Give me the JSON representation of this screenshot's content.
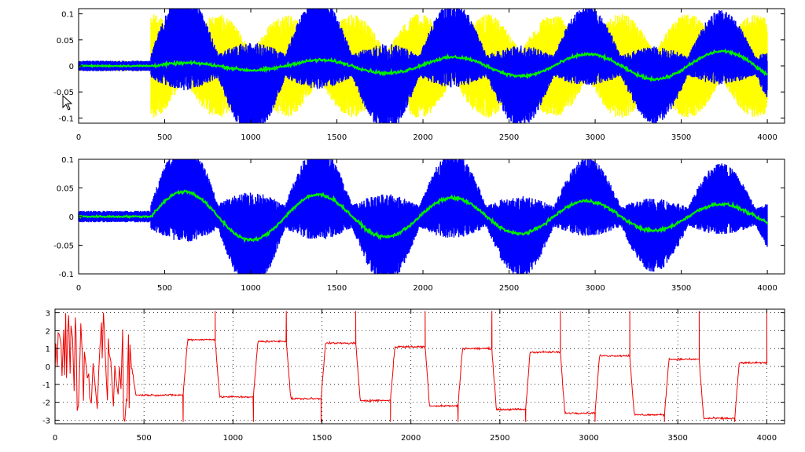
{
  "colors": {
    "background": "#ffffff",
    "axis": "#000000",
    "grid": "#000000",
    "yellow": "#ffff00",
    "blue": "#0000ff",
    "green": "#00ee00",
    "red": "#ee0000"
  },
  "chart_data": [
    {
      "type": "line",
      "title": "",
      "xlabel": "",
      "ylabel": "",
      "xlim": [
        0,
        4100
      ],
      "ylim": [
        -0.11,
        0.11
      ],
      "x_ticks": [
        "0",
        "500",
        "1000",
        "1500",
        "2000",
        "2500",
        "3000",
        "3500",
        "4000"
      ],
      "y_ticks": [
        "0.1",
        "0.05",
        "0",
        "-0.05",
        "-0.1"
      ],
      "x_tick_values": [
        0,
        500,
        1000,
        1500,
        2000,
        2500,
        3000,
        3500,
        4000
      ],
      "y_tick_values": [
        0.1,
        0.05,
        0,
        -0.05,
        -0.1
      ],
      "grid": false,
      "series": [
        {
          "color": "yellow",
          "style": "band",
          "x_start": 0,
          "x_end": 4000,
          "noise_until": 420,
          "envelope_period": 390,
          "envelope_phase": 0.5,
          "amplitude": [
            0.1,
            0.1
          ],
          "fill": "between"
        },
        {
          "color": "blue",
          "style": "band",
          "x_start": 0,
          "x_end": 4000,
          "noise_until": 420,
          "envelope_period": 390,
          "envelope_phase": 0.0,
          "amplitude": [
            0.095,
            0.07
          ],
          "fill": "between"
        },
        {
          "color": "green",
          "style": "line",
          "x_start": 0,
          "x_end": 4000,
          "noise_until": 420,
          "envelope_period": 390,
          "envelope_phase": 0.0,
          "amplitude": [
            0.004,
            0.03
          ]
        }
      ]
    },
    {
      "type": "line",
      "title": "",
      "xlabel": "",
      "ylabel": "",
      "xlim": [
        0,
        4100
      ],
      "ylim": [
        -0.1,
        0.1
      ],
      "x_ticks": [
        "0",
        "500",
        "1000",
        "1500",
        "2000",
        "2500",
        "3000",
        "3500",
        "4000"
      ],
      "y_ticks": [
        "0.1",
        "0.05",
        "0",
        "-0.05",
        "-0.1"
      ],
      "x_tick_values": [
        0,
        500,
        1000,
        1500,
        2000,
        2500,
        3000,
        3500,
        4000
      ],
      "y_tick_values": [
        0.1,
        0.05,
        0,
        -0.05,
        -0.1
      ],
      "grid": false,
      "series": [
        {
          "color": "blue",
          "style": "band",
          "x_start": 0,
          "x_end": 4000,
          "noise_until": 420,
          "envelope_period": 390,
          "envelope_phase": 0.0,
          "amplitude": [
            0.09,
            0.06
          ]
        },
        {
          "color": "green",
          "style": "line",
          "x_start": 0,
          "x_end": 4000,
          "noise_until": 420,
          "envelope_period": 390,
          "envelope_phase": 0.0,
          "amplitude": [
            0.045,
            0.02
          ]
        }
      ]
    },
    {
      "type": "line",
      "title": "",
      "xlabel": "",
      "ylabel": "",
      "xlim": [
        0,
        4100
      ],
      "ylim": [
        -3.2,
        3.2
      ],
      "x_ticks": [
        "0",
        "500",
        "1000",
        "1500",
        "2000",
        "2500",
        "3000",
        "3500",
        "4000"
      ],
      "y_ticks": [
        "3",
        "2",
        "1",
        "0",
        "-1",
        "-2",
        "-3"
      ],
      "x_tick_values": [
        0,
        500,
        1000,
        1500,
        2000,
        2500,
        3000,
        3500,
        4000
      ],
      "y_tick_values": [
        3,
        2,
        1,
        0,
        -1,
        -2,
        -3
      ],
      "grid": true,
      "series": [
        {
          "color": "red",
          "style": "phase",
          "noise_until": 430,
          "levels": [
            {
              "x0": 430,
              "x1": 720,
              "y": -1.6
            },
            {
              "x0": 720,
              "x1": 900,
              "y": 1.5
            },
            {
              "x0": 900,
              "x1": 1115,
              "y": -1.7
            },
            {
              "x0": 1115,
              "x1": 1300,
              "y": 1.4
            },
            {
              "x0": 1300,
              "x1": 1495,
              "y": -1.8
            },
            {
              "x0": 1495,
              "x1": 1690,
              "y": 1.3
            },
            {
              "x0": 1690,
              "x1": 1885,
              "y": -1.9
            },
            {
              "x0": 1885,
              "x1": 2080,
              "y": 1.1
            },
            {
              "x0": 2080,
              "x1": 2265,
              "y": -2.2
            },
            {
              "x0": 2265,
              "x1": 2455,
              "y": 1.0
            },
            {
              "x0": 2455,
              "x1": 2645,
              "y": -2.4
            },
            {
              "x0": 2645,
              "x1": 2840,
              "y": 0.8
            },
            {
              "x0": 2840,
              "x1": 3035,
              "y": -2.6
            },
            {
              "x0": 3035,
              "x1": 3230,
              "y": 0.6
            },
            {
              "x0": 3230,
              "x1": 3425,
              "y": -2.7
            },
            {
              "x0": 3425,
              "x1": 3620,
              "y": 0.4
            },
            {
              "x0": 3620,
              "x1": 3820,
              "y": -2.9
            },
            {
              "x0": 3820,
              "x1": 4000,
              "y": 0.2
            }
          ]
        }
      ]
    }
  ]
}
